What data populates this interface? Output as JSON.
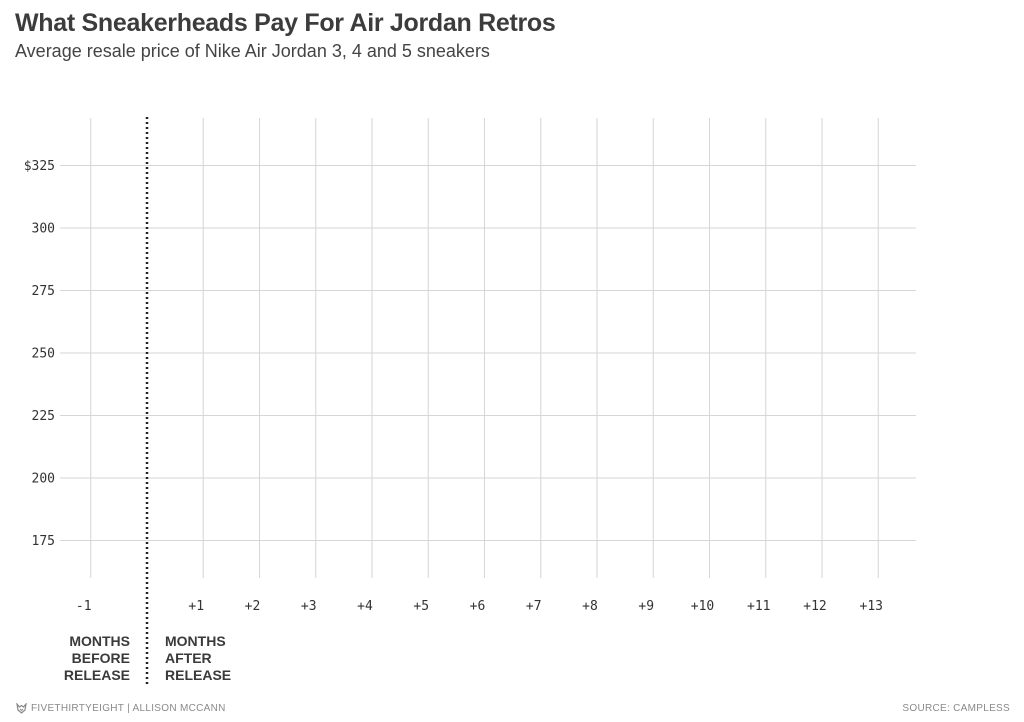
{
  "header": {
    "title": "What Sneakerheads Pay For Air Jordan Retros",
    "subtitle": "Average resale price of Nike Air Jordan 3, 4 and 5 sneakers"
  },
  "chart_data": {
    "type": "line",
    "title": "What Sneakerheads Pay For Air Jordan Retros",
    "subtitle": "Average resale price of Nike Air Jordan 3, 4 and 5 sneakers",
    "xlabel": "",
    "ylabel": "",
    "x": [
      -1,
      1,
      2,
      3,
      4,
      5,
      6,
      7,
      8,
      9,
      10,
      11,
      12,
      13
    ],
    "x_tick_labels": [
      "-1",
      "+1",
      "+2",
      "+3",
      "+4",
      "+5",
      "+6",
      "+7",
      "+8",
      "+9",
      "+10",
      "+11",
      "+12",
      "+13"
    ],
    "y_ticks": [
      175,
      200,
      225,
      250,
      275,
      300,
      325
    ],
    "y_tick_labels": [
      "175",
      "200",
      "225",
      "250",
      "275",
      "300",
      "$325"
    ],
    "xlim": [
      -1,
      13
    ],
    "ylim": [
      160,
      343
    ],
    "grid": true,
    "series": [],
    "release_marker": {
      "x": 0,
      "style": "dotted",
      "label_before": [
        "MONTHS",
        "BEFORE",
        "RELEASE"
      ],
      "label_after": [
        "MONTHS",
        "AFTER",
        "RELEASE"
      ]
    }
  },
  "footer": {
    "credit": "FIVETHIRTYEIGHT | ALLISON MCCANN",
    "source": "SOURCE: CAMPLESS",
    "logo_icon": "fivethirtyeight-fox-icon"
  }
}
